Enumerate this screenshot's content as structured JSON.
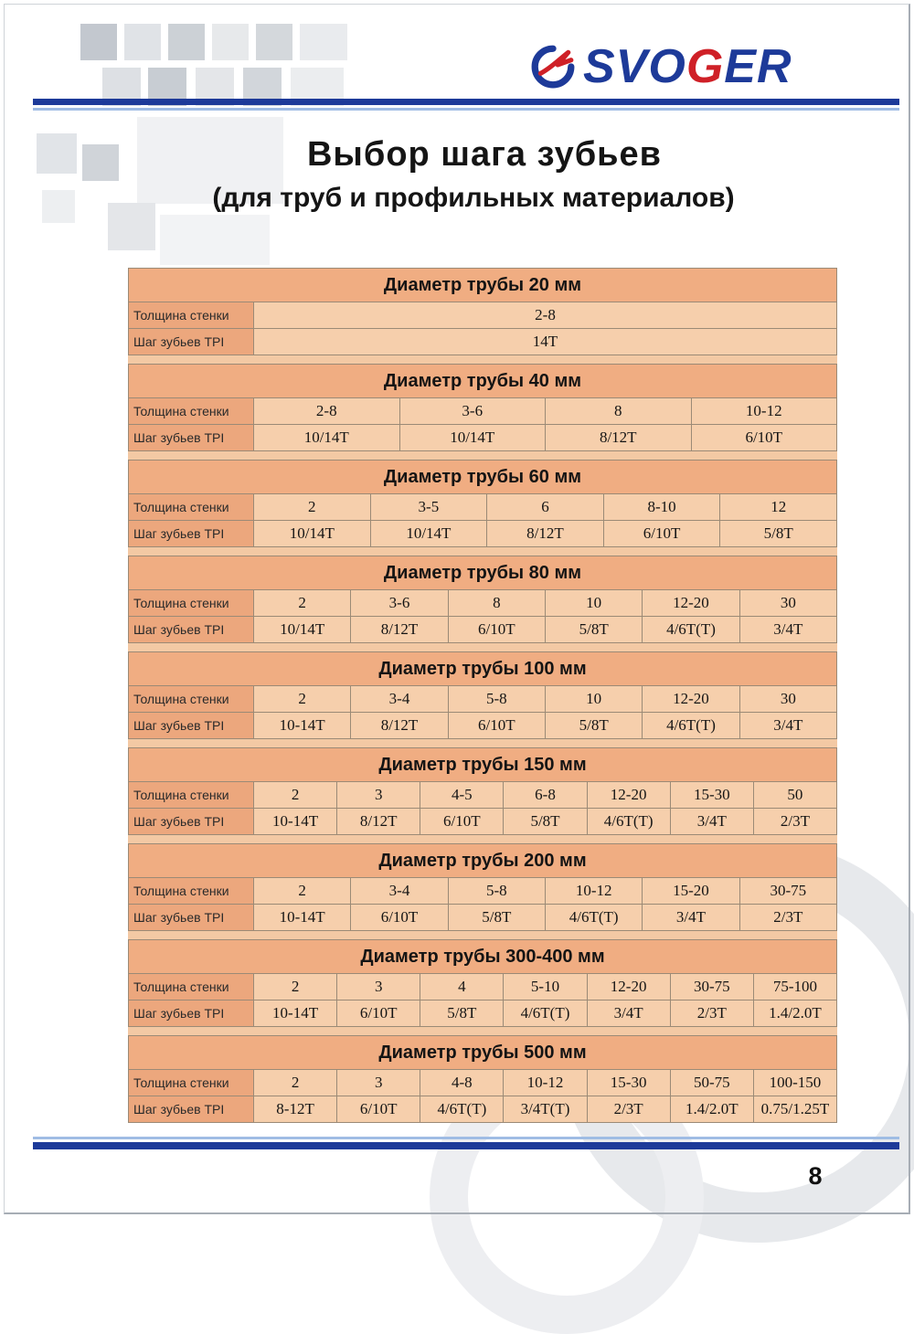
{
  "logo": {
    "pre": "SVO",
    "accent": "G",
    "post": "ER"
  },
  "title": "Выбор шага зубьев",
  "subtitle": "(для труб и профильных материалов)",
  "row_labels": {
    "thickness": "Толщина стенки",
    "tpi": "Шаг зубьев TPI"
  },
  "page_number": "8",
  "colors": {
    "accent_blue": "#1d3a99",
    "accent_red": "#cf2027",
    "table_header_bg": "#f0ad82",
    "table_label_bg": "#eca77d",
    "table_cell_bg": "#f6cfac"
  },
  "tables": [
    {
      "title": "Диаметр трубы 20 мм",
      "thickness": [
        "2-8"
      ],
      "tpi": [
        "14T"
      ]
    },
    {
      "title": "Диаметр трубы 40 мм",
      "thickness": [
        "2-8",
        "3-6",
        "8",
        "10-12"
      ],
      "tpi": [
        "10/14T",
        "10/14T",
        "8/12T",
        "6/10T"
      ]
    },
    {
      "title": "Диаметр трубы 60 мм",
      "thickness": [
        "2",
        "3-5",
        "6",
        "8-10",
        "12"
      ],
      "tpi": [
        "10/14T",
        "10/14T",
        "8/12T",
        "6/10T",
        "5/8T"
      ]
    },
    {
      "title": "Диаметр трубы 80 мм",
      "thickness": [
        "2",
        "3-6",
        "8",
        "10",
        "12-20",
        "30"
      ],
      "tpi": [
        "10/14T",
        "8/12T",
        "6/10T",
        "5/8T",
        "4/6T(T)",
        "3/4T"
      ]
    },
    {
      "title": "Диаметр трубы 100 мм",
      "thickness": [
        "2",
        "3-4",
        "5-8",
        "10",
        "12-20",
        "30"
      ],
      "tpi": [
        "10-14T",
        "8/12T",
        "6/10T",
        "5/8T",
        "4/6T(T)",
        "3/4T"
      ]
    },
    {
      "title": "Диаметр трубы 150 мм",
      "thickness": [
        "2",
        "3",
        "4-5",
        "6-8",
        "12-20",
        "15-30",
        "50"
      ],
      "tpi": [
        "10-14T",
        "8/12T",
        "6/10T",
        "5/8T",
        "4/6T(T)",
        "3/4T",
        "2/3T"
      ]
    },
    {
      "title": "Диаметр трубы 200 мм",
      "thickness": [
        "2",
        "3-4",
        "5-8",
        "10-12",
        "15-20",
        "30-75"
      ],
      "tpi": [
        "10-14T",
        "6/10T",
        "5/8T",
        "4/6T(T)",
        "3/4T",
        "2/3T"
      ]
    },
    {
      "title": "Диаметр трубы 300-400 мм",
      "thickness": [
        "2",
        "3",
        "4",
        "5-10",
        "12-20",
        "30-75",
        "75-100"
      ],
      "tpi": [
        "10-14T",
        "6/10T",
        "5/8T",
        "4/6T(T)",
        "3/4T",
        "2/3T",
        "1.4/2.0T"
      ]
    },
    {
      "title": "Диаметр трубы 500 мм",
      "thickness": [
        "2",
        "3",
        "4-8",
        "10-12",
        "15-30",
        "50-75",
        "100-150"
      ],
      "tpi": [
        "8-12T",
        "6/10T",
        "4/6T(T)",
        "3/4T(T)",
        "2/3T",
        "1.4/2.0T",
        "0.75/1.25T"
      ]
    }
  ]
}
